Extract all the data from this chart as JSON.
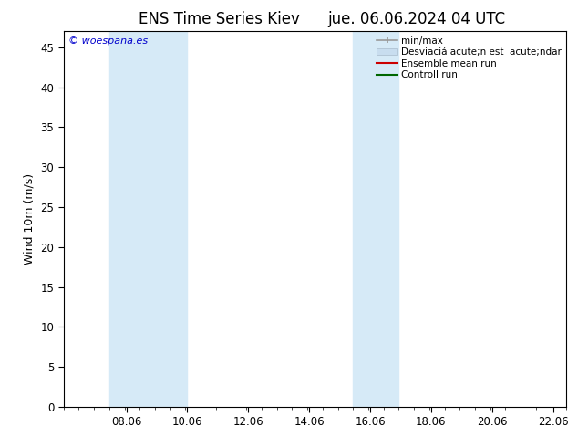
{
  "title_left": "ENS Time Series Kiev",
  "title_right": "jue. 06.06.2024 04 UTC",
  "ylabel": "Wind 10m (m/s)",
  "watermark": "© woespana.es",
  "xlim": [
    6.0,
    22.5
  ],
  "ylim": [
    0,
    47
  ],
  "yticks": [
    0,
    5,
    10,
    15,
    20,
    25,
    30,
    35,
    40,
    45
  ],
  "xticks": [
    8.06,
    10.06,
    12.06,
    14.06,
    16.06,
    18.06,
    20.06,
    22.06
  ],
  "xtick_labels": [
    "08.06",
    "10.06",
    "12.06",
    "14.06",
    "16.06",
    "18.06",
    "20.06",
    "22.06"
  ],
  "shaded_bands": [
    {
      "xmin": 7.5,
      "xmax": 10.06,
      "color": "#d6eaf7"
    },
    {
      "xmin": 15.5,
      "xmax": 17.0,
      "color": "#d6eaf7"
    }
  ],
  "bg_color": "#ffffff",
  "plot_bg_color": "#ffffff",
  "title_fontsize": 12,
  "axis_label_fontsize": 9,
  "tick_fontsize": 8.5,
  "watermark_color": "#0000cc",
  "legend_fontsize": 7.5
}
